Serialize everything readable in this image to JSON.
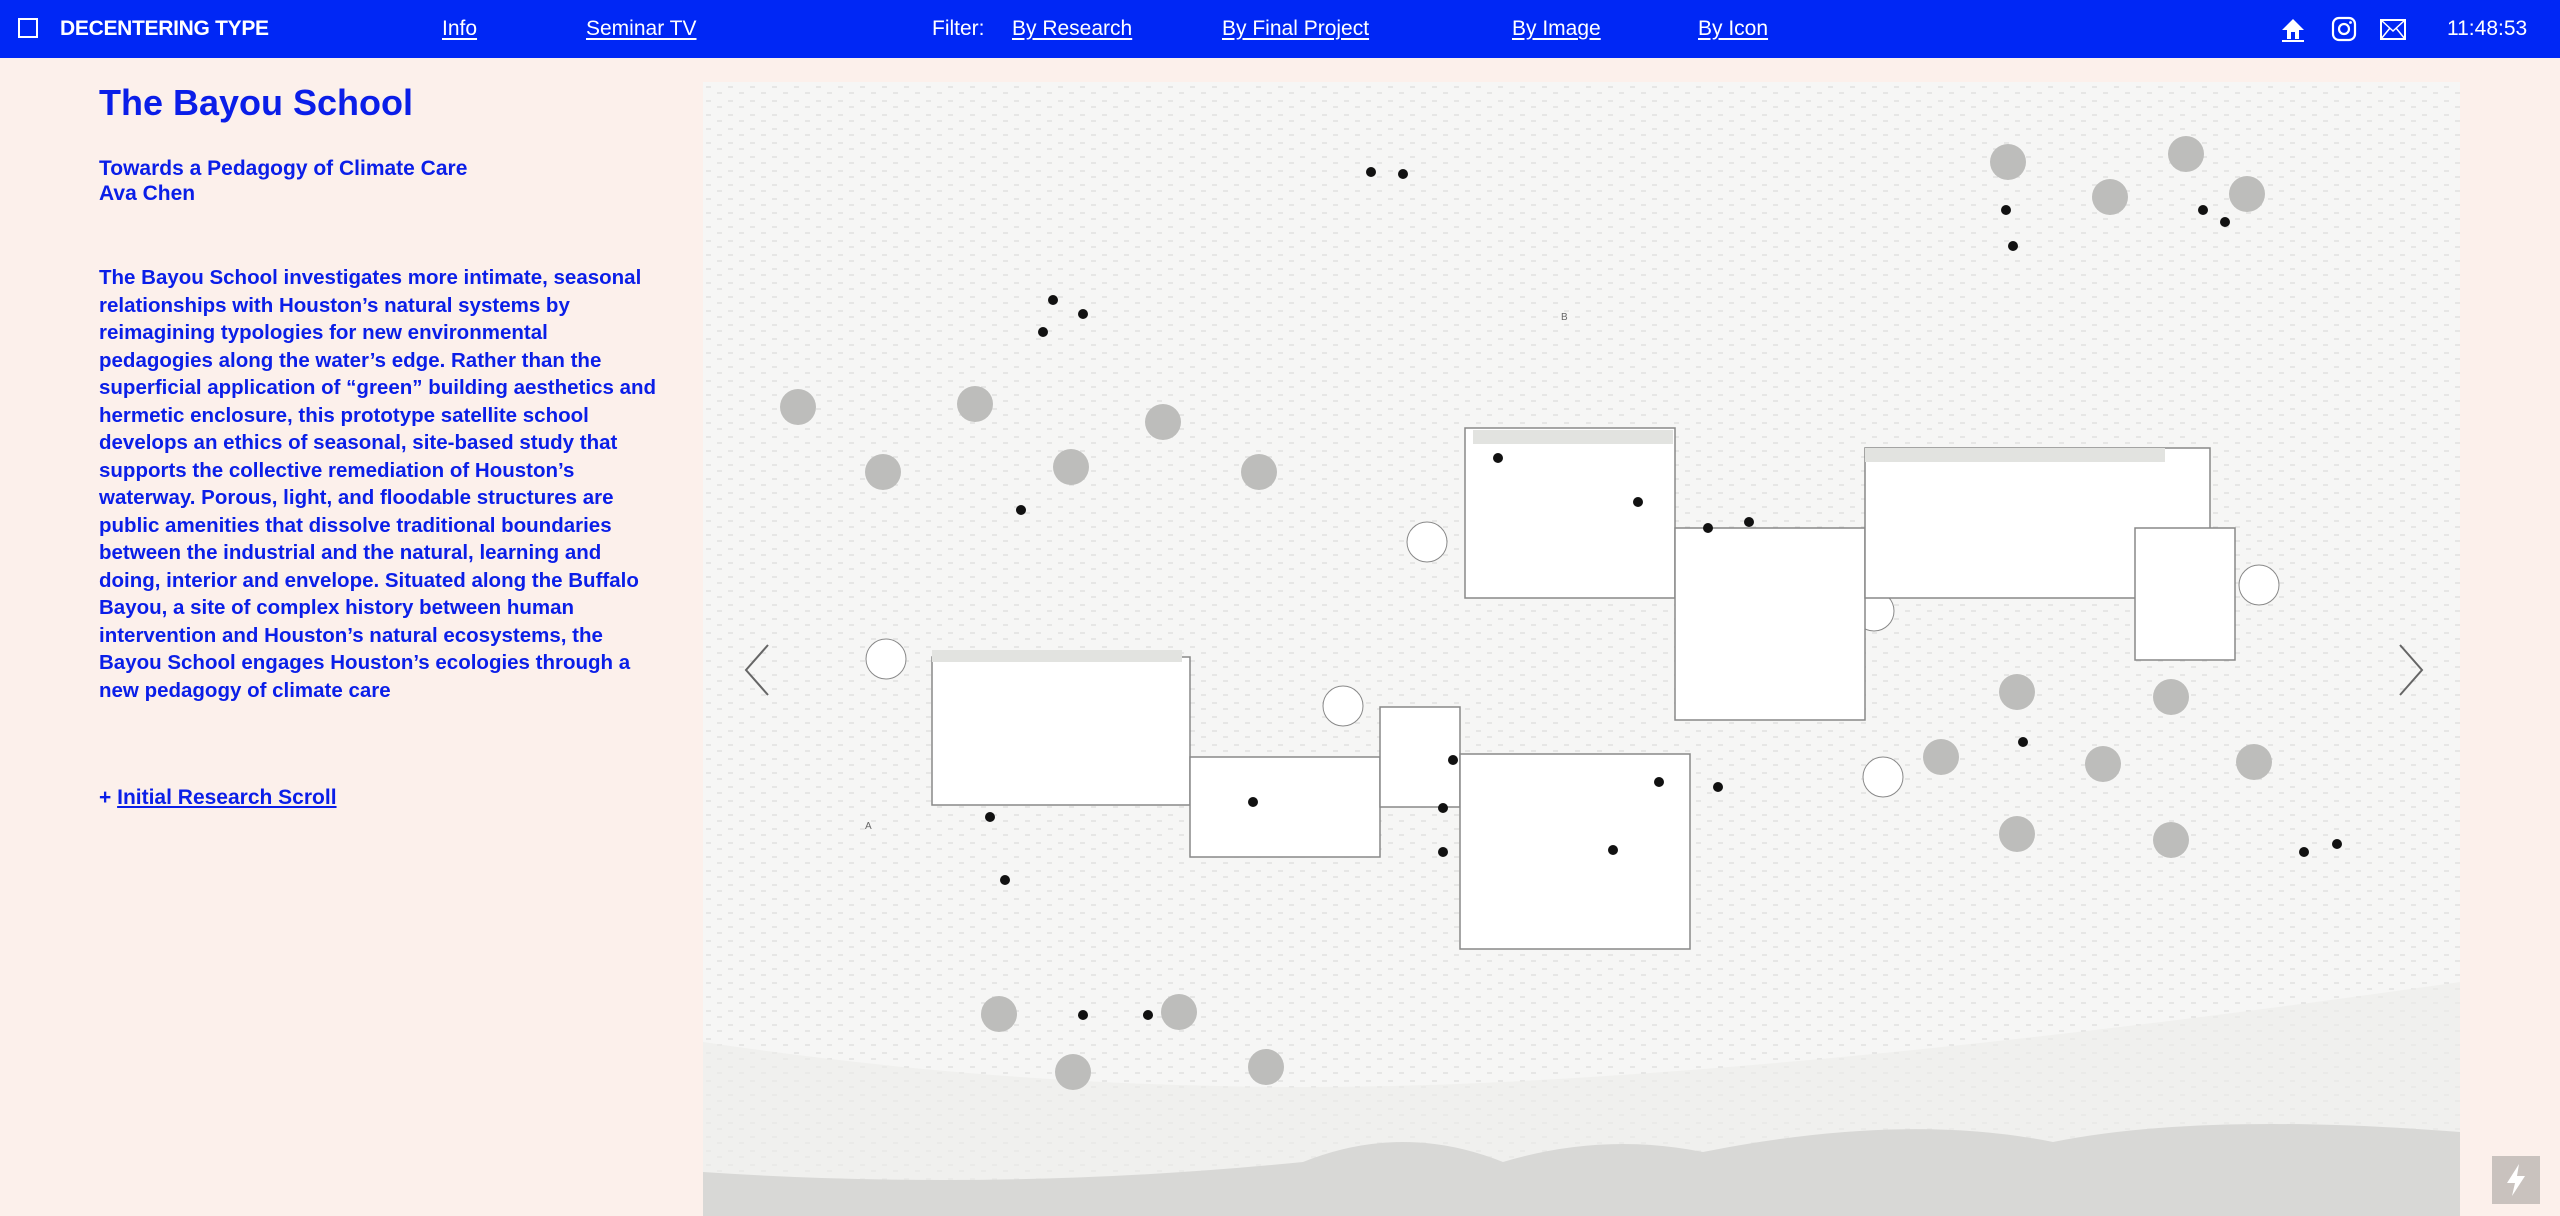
{
  "header": {
    "brand": "DECENTERING TYPE",
    "nav": [
      {
        "label": "Info"
      },
      {
        "label": "Seminar TV"
      }
    ],
    "filter_label": "Filter:",
    "filters": [
      {
        "label": "By Research"
      },
      {
        "label": "By Final Project"
      },
      {
        "label": "By Image"
      },
      {
        "label": "By Icon"
      }
    ],
    "icons": [
      "home-icon",
      "instagram-icon",
      "mail-icon"
    ],
    "clock": "11:48:53",
    "bg_color": "#0027f5"
  },
  "project": {
    "title": "The Bayou School",
    "subtitle": "Towards a Pedagogy of Climate Care",
    "author": "Ava Chen",
    "description": "The Bayou School investigates more intimate, seasonal relationships with Houston’s natural systems by reimagining typologies for new environmental pedagogies along the water’s edge. Rather than the superficial application of “green” building aesthetics and hermetic enclosure, this prototype satellite school develops an ethics of seasonal, site-based study that supports the collective remediation of Houston’s waterway. Porous, light, and floodable structures are public amenities that dissolve traditional boundaries between the industrial and the natural, learning and doing, interior and envelope. Situated along the Buffalo Bayou, a site of complex history between human intervention and Houston’s natural ecosystems, the Bayou School engages Houston’s ecologies through a new pedagogy of climate care",
    "link_prefix": "+ ",
    "link_label": "Initial Research Scroll",
    "text_color": "#0a1ee8"
  },
  "image": {
    "section_labels": [
      "A",
      "B"
    ],
    "icons": [
      "chevron-left-icon",
      "chevron-right-icon",
      "lightning-icon"
    ]
  }
}
